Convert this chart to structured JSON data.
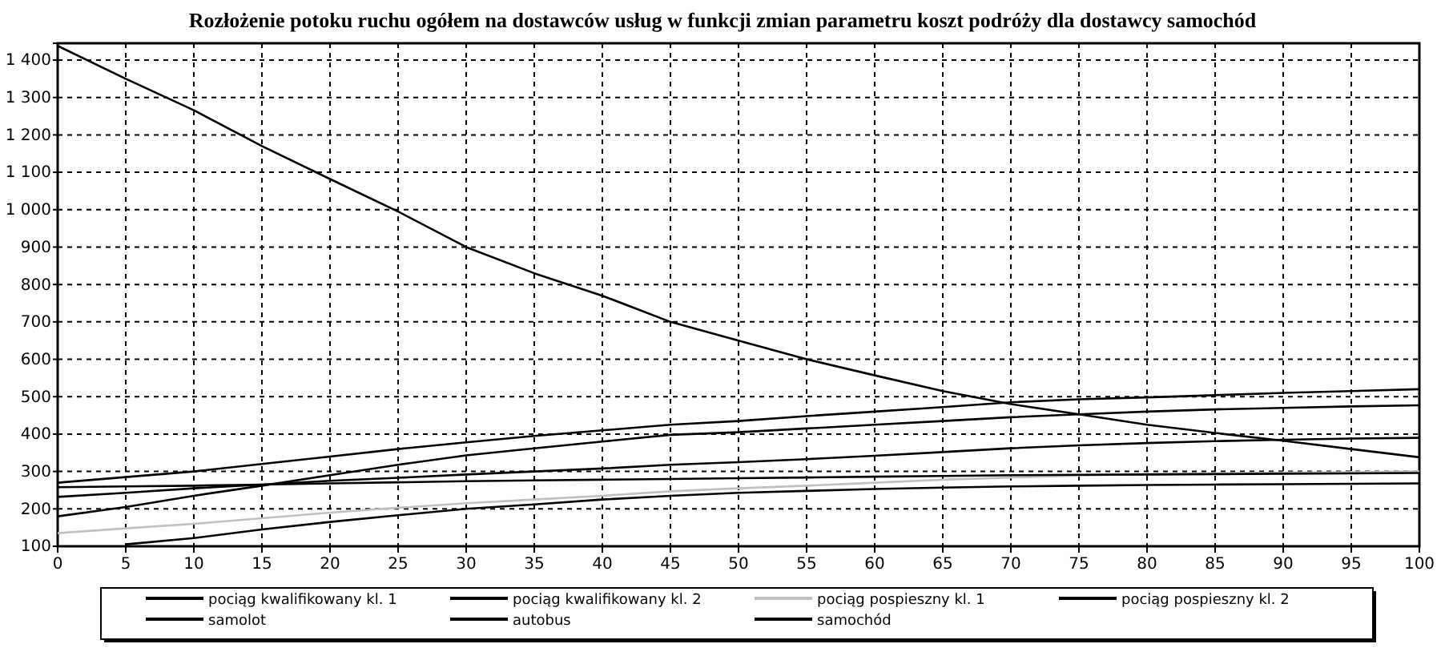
{
  "chart_data": {
    "type": "line",
    "title": "Rozłożenie potoku ruchu ogółem na dostawców usług w funkcji zmian parametru koszt podróży dla dostawcy samochód",
    "x": [
      0,
      5,
      10,
      15,
      20,
      25,
      30,
      35,
      40,
      45,
      50,
      55,
      60,
      65,
      70,
      75,
      80,
      85,
      90,
      95,
      100
    ],
    "series": [
      {
        "name": "pociąg kwalifikowany kl. 1",
        "color": "#000000",
        "values": [
          270,
          285,
          300,
          320,
          340,
          360,
          378,
          395,
          410,
          425,
          435,
          448,
          460,
          472,
          485,
          493,
          498,
          504,
          510,
          515,
          520
        ]
      },
      {
        "name": "pociąg kwalifikowany kl. 2",
        "color": "#000000",
        "values": [
          180,
          205,
          235,
          262,
          290,
          318,
          343,
          362,
          380,
          398,
          405,
          415,
          425,
          435,
          445,
          453,
          460,
          466,
          470,
          474,
          477
        ]
      },
      {
        "name": "pociąg pospieszny kl. 1",
        "color": "#c0c0c0",
        "values": [
          135,
          148,
          160,
          175,
          190,
          203,
          215,
          225,
          235,
          247,
          255,
          262,
          270,
          278,
          284,
          289,
          293,
          295,
          297,
          298,
          300
        ]
      },
      {
        "name": "pociąg pospieszny kl. 2",
        "color": "#000000",
        "values": [
          232,
          243,
          255,
          265,
          275,
          283,
          292,
          300,
          308,
          318,
          325,
          333,
          342,
          352,
          362,
          370,
          376,
          381,
          385,
          388,
          390
        ]
      },
      {
        "name": "samolot",
        "color": "#000000",
        "values": [
          258,
          260,
          262,
          265,
          268,
          271,
          274,
          276,
          278,
          280,
          282,
          284,
          286,
          288,
          290,
          291,
          292,
          293,
          294,
          295,
          296
        ]
      },
      {
        "name": "autobus",
        "color": "#000000",
        "values": [
          null,
          105,
          122,
          145,
          165,
          183,
          200,
          212,
          225,
          235,
          243,
          248,
          253,
          257,
          260,
          262,
          264,
          265,
          266,
          267,
          268
        ]
      },
      {
        "name": "samochód",
        "color": "#000000",
        "values": [
          1438,
          1350,
          1266,
          1170,
          1082,
          995,
          900,
          830,
          770,
          700,
          650,
          600,
          557,
          515,
          480,
          453,
          425,
          403,
          382,
          360,
          338
        ]
      }
    ],
    "xlim": [
      0,
      100
    ],
    "xticks": [
      0,
      5,
      10,
      15,
      20,
      25,
      30,
      35,
      40,
      45,
      50,
      55,
      60,
      65,
      70,
      75,
      80,
      85,
      90,
      95,
      100
    ],
    "ylim": [
      100,
      1445
    ],
    "yticks": [
      100,
      200,
      300,
      400,
      500,
      600,
      700,
      800,
      900,
      {
        "value": 1000,
        "label": "1 000"
      },
      {
        "value": 1100,
        "label": "1 100"
      },
      {
        "value": 1200,
        "label": "1 200"
      },
      {
        "value": 1300,
        "label": "1 300"
      },
      {
        "value": 1400,
        "label": "1 400"
      }
    ],
    "grid": true,
    "legend": "bottom",
    "line_style": "solid",
    "marker": "none"
  }
}
